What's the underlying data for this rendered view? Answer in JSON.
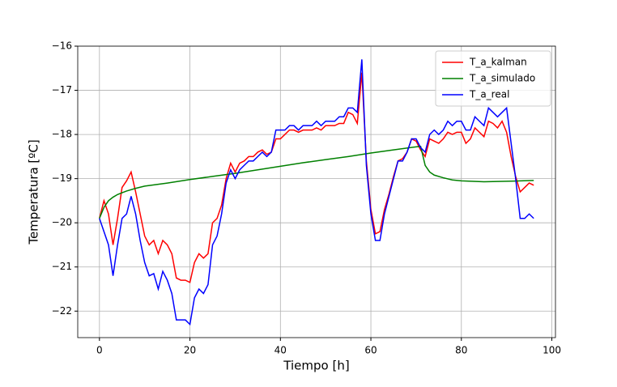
{
  "chart_data": {
    "type": "line",
    "xlabel": "Tiempo [h]",
    "ylabel": "Temperatura [ºC]",
    "xlim": [
      -4.8,
      100.8
    ],
    "ylim": [
      -22.6,
      -16.0
    ],
    "xticks": [
      0,
      20,
      40,
      60,
      80,
      100
    ],
    "yticks": [
      {
        "value": -22,
        "label": "−22"
      },
      {
        "value": -21,
        "label": "−21"
      },
      {
        "value": -20,
        "label": "−20"
      },
      {
        "value": -19,
        "label": "−19"
      },
      {
        "value": -18,
        "label": "−18"
      },
      {
        "value": -17,
        "label": "−17"
      },
      {
        "value": -16,
        "label": "−16"
      }
    ],
    "grid": true,
    "legend": "upper right",
    "series": [
      {
        "name": "T_a_kalman",
        "color": "#ff0000",
        "x": [
          0,
          1,
          2,
          3,
          4,
          5,
          6,
          7,
          8,
          9,
          10,
          11,
          12,
          13,
          14,
          15,
          16,
          17,
          18,
          19,
          20,
          21,
          22,
          23,
          24,
          25,
          26,
          27,
          28,
          29,
          30,
          31,
          32,
          33,
          34,
          35,
          36,
          37,
          38,
          39,
          40,
          41,
          42,
          43,
          44,
          45,
          46,
          47,
          48,
          49,
          50,
          51,
          52,
          53,
          54,
          55,
          56,
          57,
          58,
          59,
          60,
          61,
          62,
          63,
          64,
          65,
          66,
          67,
          68,
          69,
          70,
          71,
          72,
          73,
          74,
          75,
          76,
          77,
          78,
          79,
          80,
          81,
          82,
          83,
          84,
          85,
          86,
          87,
          88,
          89,
          90,
          91,
          92,
          93,
          94,
          95,
          96
        ],
        "values": [
          -19.9,
          -19.5,
          -19.8,
          -20.5,
          -19.9,
          -19.2,
          -19.05,
          -18.85,
          -19.3,
          -19.8,
          -20.3,
          -20.5,
          -20.4,
          -20.7,
          -20.4,
          -20.5,
          -20.7,
          -21.25,
          -21.3,
          -21.3,
          -21.35,
          -20.9,
          -20.7,
          -20.8,
          -20.7,
          -20.0,
          -19.9,
          -19.6,
          -19.0,
          -18.65,
          -18.85,
          -18.65,
          -18.6,
          -18.5,
          -18.5,
          -18.4,
          -18.35,
          -18.45,
          -18.4,
          -18.1,
          -18.1,
          -18.0,
          -17.9,
          -17.9,
          -17.95,
          -17.9,
          -17.9,
          -17.9,
          -17.85,
          -17.9,
          -17.8,
          -17.8,
          -17.8,
          -17.75,
          -17.75,
          -17.5,
          -17.55,
          -17.75,
          -16.6,
          -18.6,
          -19.7,
          -20.25,
          -20.2,
          -19.7,
          -19.35,
          -18.95,
          -18.6,
          -18.55,
          -18.4,
          -18.1,
          -18.15,
          -18.35,
          -18.5,
          -18.1,
          -18.15,
          -18.2,
          -18.1,
          -17.95,
          -18.0,
          -17.95,
          -17.95,
          -18.2,
          -18.1,
          -17.85,
          -17.95,
          -18.05,
          -17.7,
          -17.75,
          -17.85,
          -17.7,
          -17.95,
          -18.5,
          -18.95,
          -19.3,
          -19.2,
          -19.1,
          -19.15
        ]
      },
      {
        "name": "T_a_simulado",
        "color": "#008000",
        "x": [
          0,
          1,
          2,
          3,
          4,
          5,
          6,
          8,
          10,
          15,
          20,
          25,
          30,
          35,
          40,
          45,
          50,
          55,
          60,
          65,
          70,
          71,
          72,
          73,
          74,
          76,
          78,
          80,
          85,
          90,
          96
        ],
        "values": [
          -19.9,
          -19.65,
          -19.5,
          -19.42,
          -19.36,
          -19.32,
          -19.28,
          -19.22,
          -19.17,
          -19.1,
          -19.02,
          -18.95,
          -18.88,
          -18.8,
          -18.72,
          -18.64,
          -18.57,
          -18.5,
          -18.42,
          -18.35,
          -18.28,
          -18.27,
          -18.7,
          -18.85,
          -18.92,
          -18.98,
          -19.03,
          -19.05,
          -19.07,
          -19.06,
          -19.04
        ]
      },
      {
        "name": "T_a_real",
        "color": "#0000ff",
        "x": [
          0,
          1,
          2,
          3,
          4,
          5,
          6,
          7,
          8,
          9,
          10,
          11,
          12,
          13,
          14,
          15,
          16,
          17,
          18,
          19,
          20,
          21,
          22,
          23,
          24,
          25,
          26,
          27,
          28,
          29,
          30,
          31,
          32,
          33,
          34,
          35,
          36,
          37,
          38,
          39,
          40,
          41,
          42,
          43,
          44,
          45,
          46,
          47,
          48,
          49,
          50,
          51,
          52,
          53,
          54,
          55,
          56,
          57,
          58,
          59,
          60,
          61,
          62,
          63,
          64,
          65,
          66,
          67,
          68,
          69,
          70,
          71,
          72,
          73,
          74,
          75,
          76,
          77,
          78,
          79,
          80,
          81,
          82,
          83,
          84,
          85,
          86,
          87,
          88,
          89,
          90,
          91,
          92,
          93,
          94,
          95,
          96
        ],
        "values": [
          -19.9,
          -20.2,
          -20.5,
          -21.2,
          -20.5,
          -19.9,
          -19.8,
          -19.4,
          -19.8,
          -20.4,
          -20.9,
          -21.2,
          -21.15,
          -21.5,
          -21.1,
          -21.3,
          -21.6,
          -22.2,
          -22.2,
          -22.2,
          -22.3,
          -21.7,
          -21.5,
          -21.6,
          -21.4,
          -20.5,
          -20.3,
          -19.8,
          -19.1,
          -18.8,
          -19.0,
          -18.8,
          -18.7,
          -18.6,
          -18.6,
          -18.5,
          -18.4,
          -18.5,
          -18.4,
          -17.9,
          -17.9,
          -17.9,
          -17.8,
          -17.8,
          -17.9,
          -17.8,
          -17.8,
          -17.8,
          -17.7,
          -17.8,
          -17.7,
          -17.7,
          -17.7,
          -17.6,
          -17.6,
          -17.4,
          -17.4,
          -17.5,
          -16.3,
          -18.7,
          -19.8,
          -20.4,
          -20.4,
          -19.8,
          -19.4,
          -19.0,
          -18.6,
          -18.6,
          -18.4,
          -18.1,
          -18.1,
          -18.3,
          -18.4,
          -18.0,
          -17.9,
          -18.0,
          -17.9,
          -17.7,
          -17.8,
          -17.7,
          -17.7,
          -17.9,
          -17.9,
          -17.6,
          -17.7,
          -17.8,
          -17.4,
          -17.5,
          -17.6,
          -17.5,
          -17.4,
          -18.2,
          -19.0,
          -19.9,
          -19.9,
          -19.8,
          -19.9
        ]
      }
    ]
  }
}
